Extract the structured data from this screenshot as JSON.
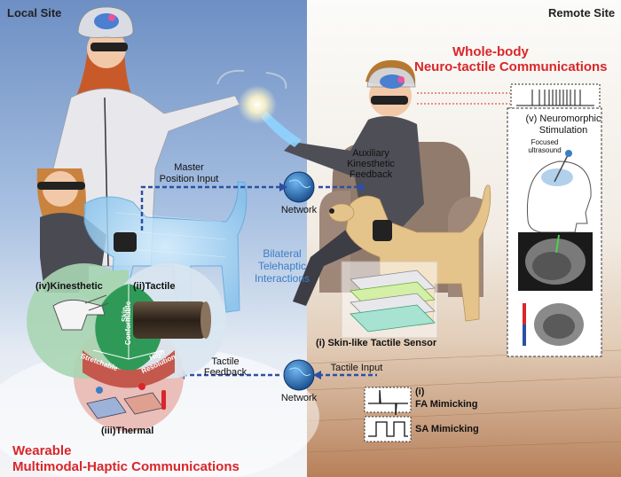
{
  "sites": {
    "local": "Local Site",
    "remote": "Remote Site"
  },
  "titles": {
    "whole_body_1": "Whole-body",
    "whole_body_2": "Neuro-tactile Communications",
    "wearable_1": "Wearable",
    "wearable_2": "Multimodal-Haptic Communications"
  },
  "labels": {
    "master_1": "Master",
    "master_2": "Position Input",
    "auxiliary_1": "Auxiliary",
    "auxiliary_2": "Kinesthetic",
    "auxiliary_3": "Feedback",
    "network_top": "Network",
    "network_bottom": "Network",
    "bilateral_1": "Bilateral",
    "bilateral_2": "Telehaptic",
    "bilateral_3": "Interactions",
    "kinesthetic": "(iv)Kinesthetic",
    "tactile": "(ii)Tactile",
    "thermal": "(iii)Thermal",
    "skin_conformable_1": "Skin",
    "skin_conformable_2": "Conformable",
    "stretchable": "Stretchable",
    "high_resolution_1": "High",
    "high_resolution_2": "Resolution",
    "tactile_feedback_1": "Tactile",
    "tactile_feedback_2": "Feedback",
    "tactile_input": "Tactile Input",
    "skin_sensor": "(i) Skin-like Tactile Sensor",
    "neuromorphic_1": "(v) Neuromorphic",
    "neuromorphic_2": "Stimulation",
    "focused_1": "Focused",
    "focused_2": "ultrasound",
    "roman_i": "(i)",
    "fa": "FA Mimicking",
    "sa": "SA Mimicking"
  },
  "colors": {
    "accent_red": "#d9262a",
    "arrow_blue": "#2c4fa6",
    "label_blue": "#3a7ec6",
    "wheel_green": "#2f9a57",
    "wheel_red": "#c4584c"
  }
}
